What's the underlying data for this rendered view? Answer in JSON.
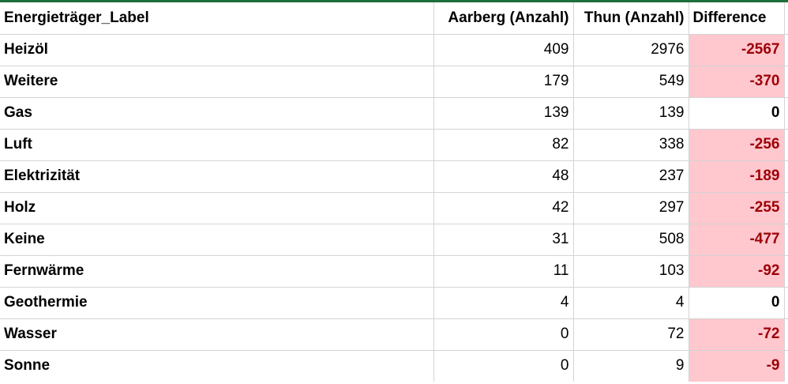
{
  "header": {
    "label": "Energieträger_Label",
    "aarberg": "Aarberg (Anzahl)",
    "thun": "Thun (Anzahl)",
    "difference": "Difference"
  },
  "rows": [
    {
      "label": "Heizöl",
      "aarberg": "409",
      "thun": "2976",
      "difference": "-2567"
    },
    {
      "label": "Weitere",
      "aarberg": "179",
      "thun": "549",
      "difference": "-370"
    },
    {
      "label": "Gas",
      "aarberg": "139",
      "thun": "139",
      "difference": "0"
    },
    {
      "label": "Luft",
      "aarberg": "82",
      "thun": "338",
      "difference": "-256"
    },
    {
      "label": "Elektrizität",
      "aarberg": "48",
      "thun": "237",
      "difference": "-189"
    },
    {
      "label": "Holz",
      "aarberg": "42",
      "thun": "297",
      "difference": "-255"
    },
    {
      "label": "Keine",
      "aarberg": "31",
      "thun": "508",
      "difference": "-477"
    },
    {
      "label": "Fernwärme",
      "aarberg": "11",
      "thun": "103",
      "difference": "-92"
    },
    {
      "label": "Geothermie",
      "aarberg": "4",
      "thun": "4",
      "difference": "0"
    },
    {
      "label": "Wasser",
      "aarberg": "0",
      "thun": "72",
      "difference": "-72"
    },
    {
      "label": "Sonne",
      "aarberg": "0",
      "thun": "9",
      "difference": "-9"
    }
  ],
  "colors": {
    "negative_fill": "#ffc7ce",
    "negative_text": "#9c0006",
    "gridline": "#d4d4d4"
  }
}
